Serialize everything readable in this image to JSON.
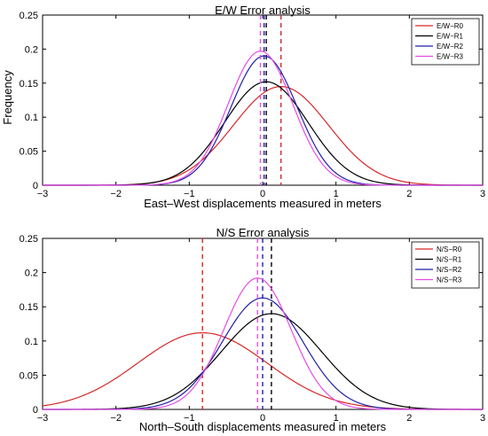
{
  "chart_data": [
    {
      "type": "line",
      "title": "E/W Error analysis",
      "xlabel": "East–West displacements measured in meters",
      "ylabel": "Frequency",
      "xlim": [
        -3,
        3
      ],
      "ylim": [
        0,
        0.25
      ],
      "xticks": [
        "−3",
        "−2",
        "−1",
        "0",
        "1",
        "2",
        "3"
      ],
      "yticks": [
        "0",
        "0.05",
        "0.1",
        "0.15",
        "0.2",
        "0.25"
      ],
      "xtick_values": [
        -3,
        -2,
        -1,
        0,
        1,
        2,
        3
      ],
      "ytick_values": [
        0,
        0.05,
        0.1,
        0.15,
        0.2,
        0.25
      ],
      "legend_position": "top-right",
      "grid": false,
      "series": [
        {
          "name": "E/W−R0",
          "color": "#d62728",
          "mean": 0.25,
          "peak": 0.145,
          "sd": 0.65
        },
        {
          "name": "E/W−R1",
          "color": "#000000",
          "mean": 0.05,
          "peak": 0.152,
          "sd": 0.57
        },
        {
          "name": "E/W−R2",
          "color": "#1f1fa8",
          "mean": 0.02,
          "peak": 0.19,
          "sd": 0.45
        },
        {
          "name": "E/W−R3",
          "color": "#e64ce6",
          "mean": -0.03,
          "peak": 0.197,
          "sd": 0.44
        }
      ]
    },
    {
      "type": "line",
      "title": "N/S Error analysis",
      "xlabel": "North–South displacements measured in meters",
      "ylabel": "",
      "xlim": [
        -3,
        3
      ],
      "ylim": [
        0,
        0.25
      ],
      "xticks": [
        "−3",
        "−2",
        "−1",
        "0",
        "1",
        "2",
        "3"
      ],
      "yticks": [
        "0",
        "0.05",
        "0.1",
        "0.15",
        "0.2",
        "0.25"
      ],
      "xtick_values": [
        -3,
        -2,
        -1,
        0,
        1,
        2,
        3
      ],
      "ytick_values": [
        0,
        0.05,
        0.1,
        0.15,
        0.2,
        0.25
      ],
      "legend_position": "top-right",
      "grid": false,
      "series": [
        {
          "name": "N/S−R0",
          "color": "#d62728",
          "mean": -0.82,
          "peak": 0.112,
          "sd": 0.88
        },
        {
          "name": "N/S−R1",
          "color": "#000000",
          "mean": 0.12,
          "peak": 0.14,
          "sd": 0.68
        },
        {
          "name": "N/S−R2",
          "color": "#1f1fa8",
          "mean": 0.0,
          "peak": 0.163,
          "sd": 0.55
        },
        {
          "name": "N/S−R3",
          "color": "#e64ce6",
          "mean": -0.07,
          "peak": 0.192,
          "sd": 0.46
        }
      ]
    }
  ]
}
